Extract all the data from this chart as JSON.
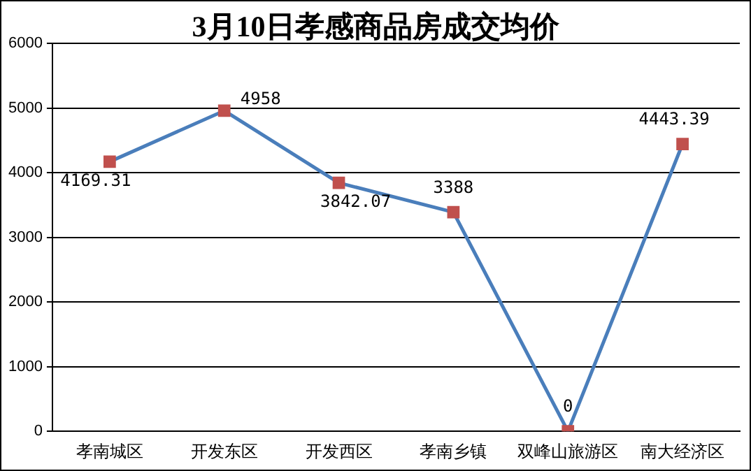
{
  "chart_data": {
    "type": "line",
    "title": "3月10日孝感商品房成交均价",
    "categories": [
      "孝南城区",
      "开发东区",
      "开发西区",
      "孝南乡镇",
      "双峰山旅游区",
      "南大经济区"
    ],
    "series": [
      {
        "color": "#4a7ebb",
        "colors": [
          "#c0504d",
          "#c0504d",
          "#c0504d",
          "#c0504d",
          "#c0504d",
          "#c0504d"
        ],
        "values": [
          4169.31,
          4958,
          3842.07,
          3388,
          0,
          4443.39
        ]
      }
    ],
    "marker": "square",
    "ylim": [
      0,
      6000
    ],
    "yticks": [
      0,
      1000,
      2000,
      3000,
      4000,
      5000,
      6000
    ],
    "grid": "y",
    "legend": false,
    "data_labels": true
  }
}
